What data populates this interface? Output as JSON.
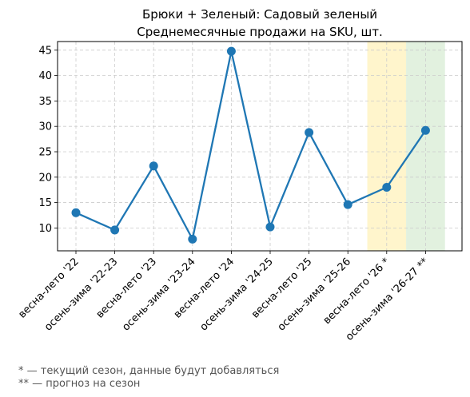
{
  "chart_data": {
    "type": "line",
    "title": "Брюки + Зеленый: Садовый зеленый",
    "subtitle": "Среднемесячные продажи на SKU, шт.",
    "categories": [
      "весна-лето '22",
      "осень-зима '22-23",
      "весна-лето '23",
      "осень-зима '23-24",
      "весна-лето '24",
      "осень-зима '24-25",
      "весна-лето '25",
      "осень-зима '25-26",
      "весна-лето '26 *",
      "осень-зима '26-27 **"
    ],
    "series": [
      {
        "values": [
          13.0,
          9.6,
          22.2,
          7.8,
          44.8,
          10.2,
          28.8,
          14.6,
          18.0,
          29.2
        ],
        "color": "#1f77b4"
      }
    ],
    "ylim": [
      5.5,
      46.7
    ],
    "yticks": [
      10,
      15,
      20,
      25,
      30,
      35,
      40,
      45
    ],
    "grid": true,
    "highlights": [
      {
        "category_index": 8,
        "color": "#fff5cc",
        "meaning": "current season"
      },
      {
        "category_index": 9,
        "color": "#e2f1df",
        "meaning": "forecast"
      }
    ]
  },
  "footnotes": [
    "* — текущий сезон, данные будут добавляться",
    "** — прогноз на сезон"
  ]
}
